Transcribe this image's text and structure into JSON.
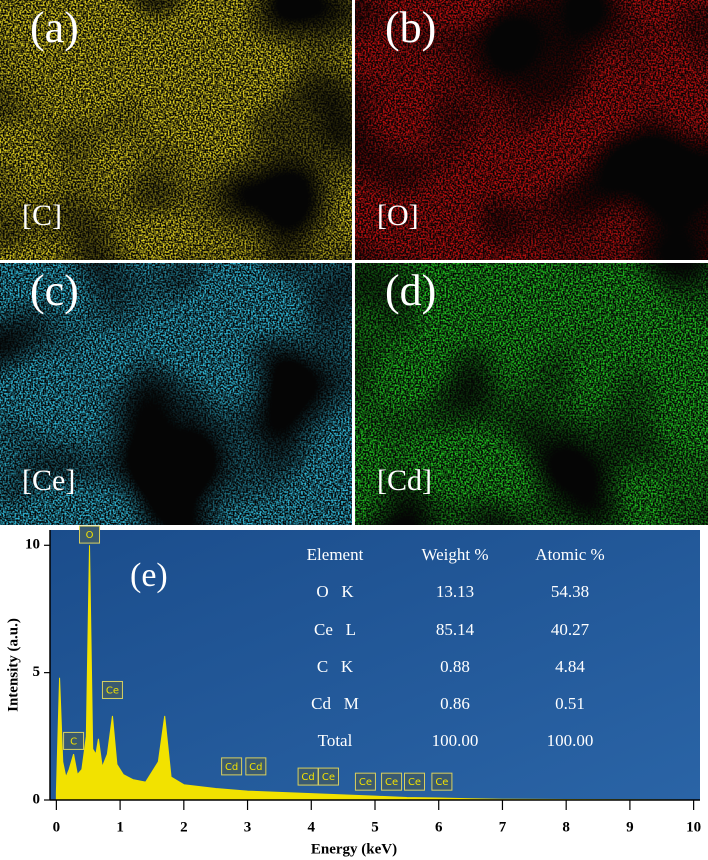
{
  "panels": [
    {
      "label": "(a)",
      "element": "[C]"
    },
    {
      "label": "(b)",
      "element": "[O]"
    },
    {
      "label": "(c)",
      "element": "[Ce]"
    },
    {
      "label": "(d)",
      "element": "[Cd]"
    }
  ],
  "chart_data": {
    "type": "area",
    "label": "(e)",
    "x_label": "Energy (keV)",
    "y_label": "Intensity (a.u.)",
    "x": [
      0,
      0.05,
      0.1,
      0.15,
      0.2,
      0.27,
      0.33,
      0.4,
      0.47,
      0.52,
      0.57,
      0.62,
      0.66,
      0.72,
      0.8,
      0.88,
      0.95,
      1.05,
      1.2,
      1.4,
      1.6,
      1.7,
      1.8,
      2.0,
      2.5,
      3.0,
      3.5,
      4.0,
      4.5,
      5.0,
      5.5,
      6.0,
      6.5,
      7.0,
      8.0,
      9.0,
      10.0
    ],
    "series": [
      {
        "color": "#f2e200",
        "values": [
          0.3,
          4.8,
          1.5,
          0.9,
          1.2,
          1.8,
          1.0,
          1.2,
          2.5,
          10.0,
          2.0,
          1.8,
          2.4,
          1.3,
          1.8,
          3.3,
          1.4,
          1.0,
          0.8,
          0.7,
          1.5,
          3.3,
          0.9,
          0.6,
          0.45,
          0.35,
          0.3,
          0.25,
          0.2,
          0.15,
          0.1,
          0.08,
          0.05,
          0.03,
          0.02,
          0.01,
          0.0
        ]
      }
    ],
    "xlim": [
      -0.1,
      10.1
    ],
    "ylim": [
      0,
      10.6
    ],
    "xticks": [
      0,
      1,
      2,
      3,
      4,
      5,
      6,
      7,
      8,
      9,
      10
    ],
    "yticks": [
      0,
      5,
      10
    ],
    "peak_labels": [
      {
        "text": "C",
        "x": 0.27,
        "y": 2.3
      },
      {
        "text": "O",
        "x": 0.52,
        "y": 10.4
      },
      {
        "text": "Ce",
        "x": 0.88,
        "y": 4.3
      },
      {
        "text": "Cd",
        "x": 2.75,
        "y": 1.3
      },
      {
        "text": "Cd",
        "x": 3.13,
        "y": 1.3
      },
      {
        "text": "Cd",
        "x": 3.95,
        "y": 0.9
      },
      {
        "text": "Ce",
        "x": 4.27,
        "y": 0.9
      },
      {
        "text": "Ce",
        "x": 4.85,
        "y": 0.7
      },
      {
        "text": "Ce",
        "x": 5.26,
        "y": 0.7
      },
      {
        "text": "Ce",
        "x": 5.62,
        "y": 0.7
      },
      {
        "text": "Ce",
        "x": 6.05,
        "y": 0.7
      }
    ],
    "table": {
      "header": [
        "Element",
        "Weight %",
        "Atomic %"
      ],
      "rows": [
        [
          "O   K",
          "13.13",
          "54.38"
        ],
        [
          "Ce   L",
          "85.14",
          "40.27"
        ],
        [
          "C   K",
          "0.88",
          "4.84"
        ],
        [
          "Cd   M",
          "0.86",
          "0.51"
        ],
        [
          "Total",
          "100.00",
          "100.00"
        ]
      ]
    }
  }
}
